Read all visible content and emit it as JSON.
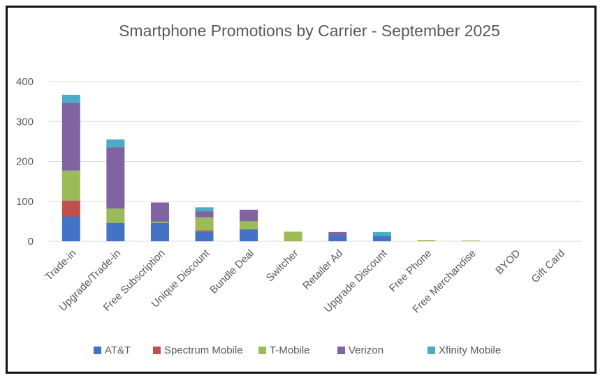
{
  "chart_data": {
    "type": "bar",
    "stacked": true,
    "title": "Smartphone Promotions by Carrier - September 2025",
    "xlabel": "",
    "ylabel": "",
    "ylim": [
      0,
      400
    ],
    "yticks": [
      0,
      100,
      200,
      300,
      400
    ],
    "grid": true,
    "legend_position": "bottom",
    "categories": [
      "Trade-in",
      "Upgrade/Trade-in",
      "Free Subscription",
      "Unique Discount",
      "Bundle Deal",
      "Switcher",
      "Retailer Ad",
      "Upgrade Discount",
      "Free Phone",
      "Free Merchandise",
      "BYOD",
      "Gift Card"
    ],
    "series": [
      {
        "name": "AT&T",
        "color": "#4472C4",
        "values": [
          62,
          46,
          46,
          23,
          30,
          0,
          14,
          13,
          0,
          0,
          0,
          0
        ]
      },
      {
        "name": "Spectrum Mobile",
        "color": "#C0504D",
        "values": [
          40,
          0,
          0,
          4,
          0,
          0,
          0,
          0,
          0,
          0,
          0,
          0
        ]
      },
      {
        "name": "T-Mobile",
        "color": "#9BBB59",
        "values": [
          75,
          36,
          3,
          33,
          20,
          24,
          0,
          0,
          3,
          2,
          0,
          0
        ]
      },
      {
        "name": "Verizon",
        "color": "#8064A2",
        "values": [
          170,
          153,
          48,
          15,
          29,
          0,
          9,
          0,
          0,
          0,
          0,
          0
        ]
      },
      {
        "name": "Xfinity Mobile",
        "color": "#4BACC6",
        "values": [
          20,
          20,
          0,
          10,
          0,
          0,
          0,
          10,
          0,
          0,
          0,
          0
        ]
      }
    ]
  }
}
